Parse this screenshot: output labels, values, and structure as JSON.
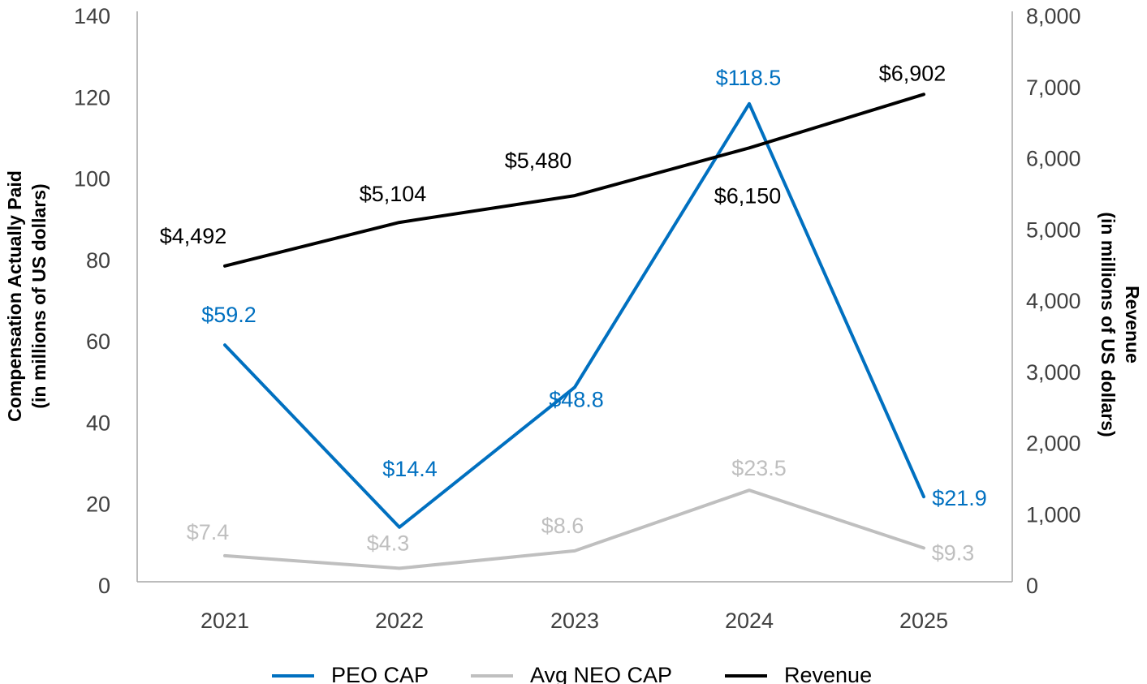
{
  "chart_data": {
    "type": "line",
    "categories": [
      "2021",
      "2022",
      "2023",
      "2024",
      "2025"
    ],
    "left_axis": {
      "label_line1": "Compensation Actually Paid",
      "label_line2": "(in millions of US dollars)",
      "range": [
        0,
        140
      ],
      "ticks": [
        "0",
        "20",
        "40",
        "60",
        "80",
        "100",
        "120",
        "140"
      ]
    },
    "right_axis": {
      "label_line1": "Revenue",
      "label_line2": "(in millions of US dollars)",
      "range": [
        0,
        8000
      ],
      "ticks": [
        "0",
        "1,000",
        "2,000",
        "3,000",
        "4,000",
        "5,000",
        "6,000",
        "7,000",
        "8,000"
      ]
    },
    "series": [
      {
        "name": "PEO CAP",
        "axis": "left",
        "color": "#0070c0",
        "values": [
          59.2,
          14.4,
          48.8,
          118.5,
          21.9
        ],
        "labels": [
          "$59.2",
          "$14.4",
          "$48.8",
          "$118.5",
          "$21.9"
        ]
      },
      {
        "name": "Avg NEO CAP",
        "axis": "left",
        "color": "#bfbfbf",
        "values": [
          7.4,
          4.3,
          8.6,
          23.5,
          9.3
        ],
        "labels": [
          "$7.4",
          "$4.3",
          "$8.6",
          "$23.5",
          "$9.3"
        ]
      },
      {
        "name": "Revenue",
        "axis": "right",
        "color": "#000000",
        "values": [
          4492,
          5104,
          5480,
          6150,
          6902
        ],
        "labels": [
          "$4,492",
          "$5,104",
          "$5,480",
          "$6,150",
          "$6,902"
        ]
      }
    ],
    "legend": [
      "PEO CAP",
      "Avg NEO CAP",
      "Revenue"
    ],
    "legend_position": "bottom",
    "grid": false
  }
}
